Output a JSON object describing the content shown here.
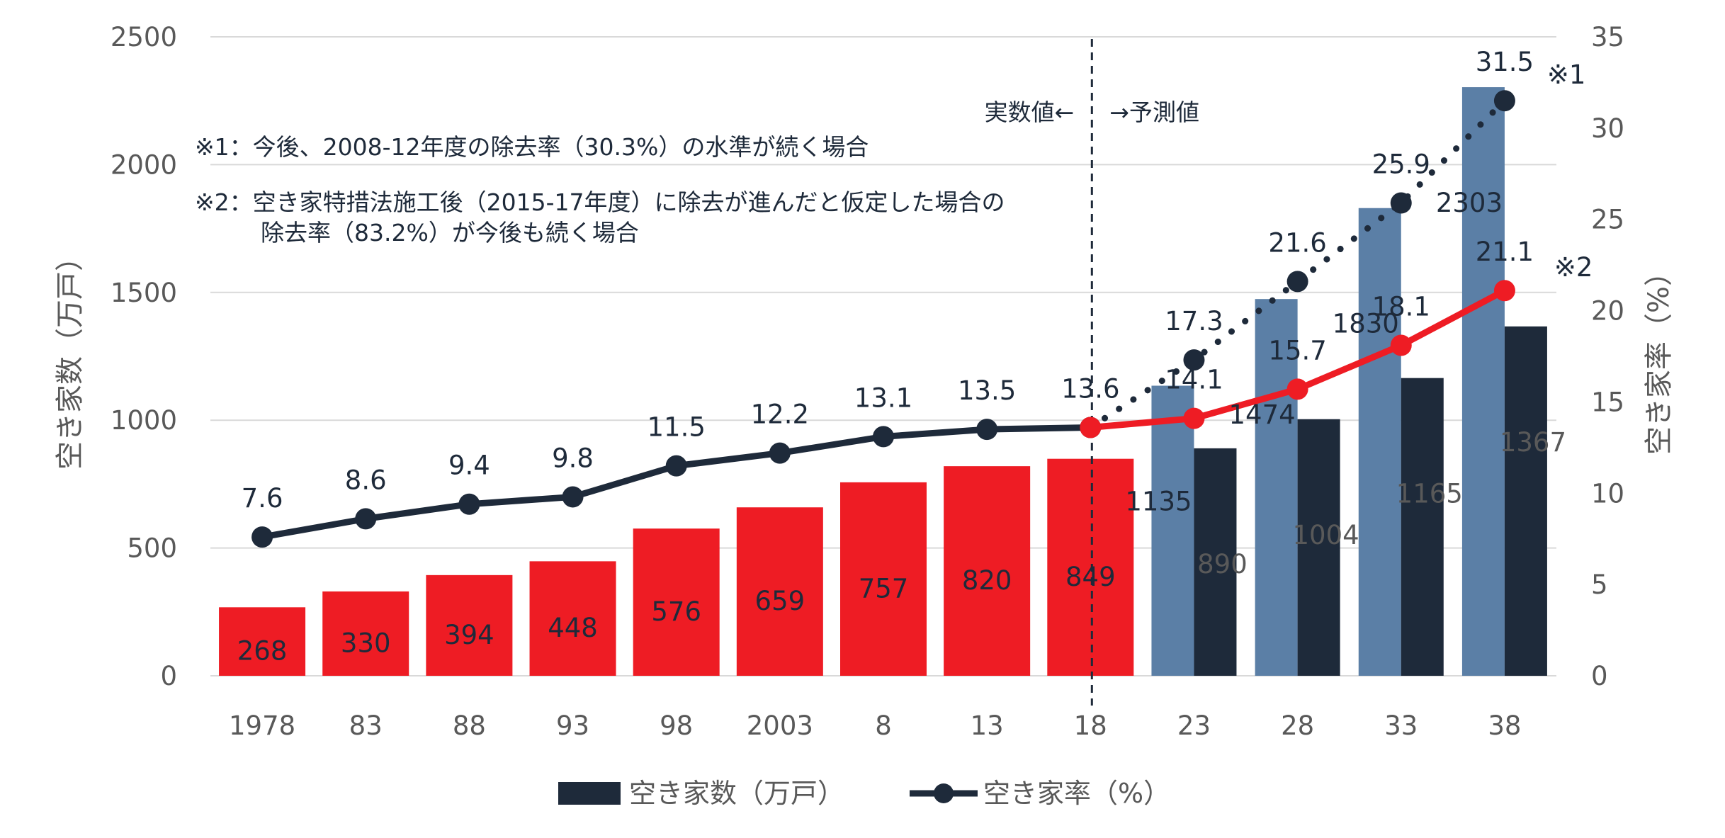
{
  "chart_data": {
    "type": "bar",
    "categories": [
      "1978",
      "83",
      "88",
      "93",
      "98",
      "2003",
      "8",
      "13",
      "18",
      "23",
      "28",
      "33",
      "38"
    ],
    "left_axis": {
      "label": "空き家数（万戸）",
      "ylim": [
        0,
        2500
      ],
      "ticks": [
        "0",
        "500",
        "1000",
        "1500",
        "2000",
        "2500"
      ]
    },
    "right_axis": {
      "label": "空き家率（%）",
      "ylim": [
        0,
        35
      ],
      "ticks": [
        "0",
        "5",
        "10",
        "15",
        "20",
        "25",
        "30",
        "35"
      ]
    },
    "series": [
      {
        "name": "空き家数（万戸）",
        "kind": "bar",
        "axis": "left",
        "color": "#ee1c24",
        "values": [
          268,
          330,
          394,
          448,
          576,
          659,
          757,
          820,
          849,
          null,
          null,
          null,
          null
        ]
      },
      {
        "kind": "bar",
        "axis": "left",
        "color": "#5b7fa6",
        "values": [
          null,
          null,
          null,
          null,
          null,
          null,
          null,
          null,
          null,
          1135,
          1474,
          1830,
          2303
        ]
      },
      {
        "kind": "bar",
        "axis": "left",
        "color": "#1e2a3a",
        "values": [
          null,
          null,
          null,
          null,
          null,
          null,
          null,
          null,
          null,
          890,
          1004,
          1165,
          1367
        ]
      },
      {
        "name": "空き家率（%）",
        "kind": "line",
        "axis": "right",
        "color": "#1e2a3a",
        "values": [
          7.6,
          8.6,
          9.4,
          9.8,
          11.5,
          12.2,
          13.1,
          13.5,
          13.6,
          null,
          null,
          null,
          null
        ]
      },
      {
        "kind": "line-dotted",
        "axis": "right",
        "color": "#1e2a3a",
        "marker": "※1",
        "values": [
          null,
          null,
          null,
          null,
          null,
          null,
          null,
          null,
          13.6,
          17.3,
          21.6,
          25.9,
          31.5
        ]
      },
      {
        "kind": "line",
        "axis": "right",
        "color": "#ee1c24",
        "marker": "※2",
        "values": [
          null,
          null,
          null,
          null,
          null,
          null,
          null,
          null,
          13.6,
          14.1,
          15.7,
          18.1,
          21.1
        ]
      }
    ],
    "divider": {
      "after_category": "18",
      "left_text": "実数値←",
      "right_text": "→予測値"
    },
    "notes": [
      "※1：今後、2008-12年度の除去率（30.3%）の水準が続く場合",
      "※2：空き家特措法施工後（2015-17年度）に除去が進んだと仮定した場合の",
      "除去率（83.2%）が今後も続く場合"
    ],
    "legend": [
      {
        "label": "空き家数（万戸）",
        "type": "bar",
        "color": "#1e2a3a"
      },
      {
        "label": "空き家率（%）",
        "type": "line",
        "color": "#1e2a3a"
      }
    ],
    "legend_position": "bottom",
    "grid": true
  }
}
